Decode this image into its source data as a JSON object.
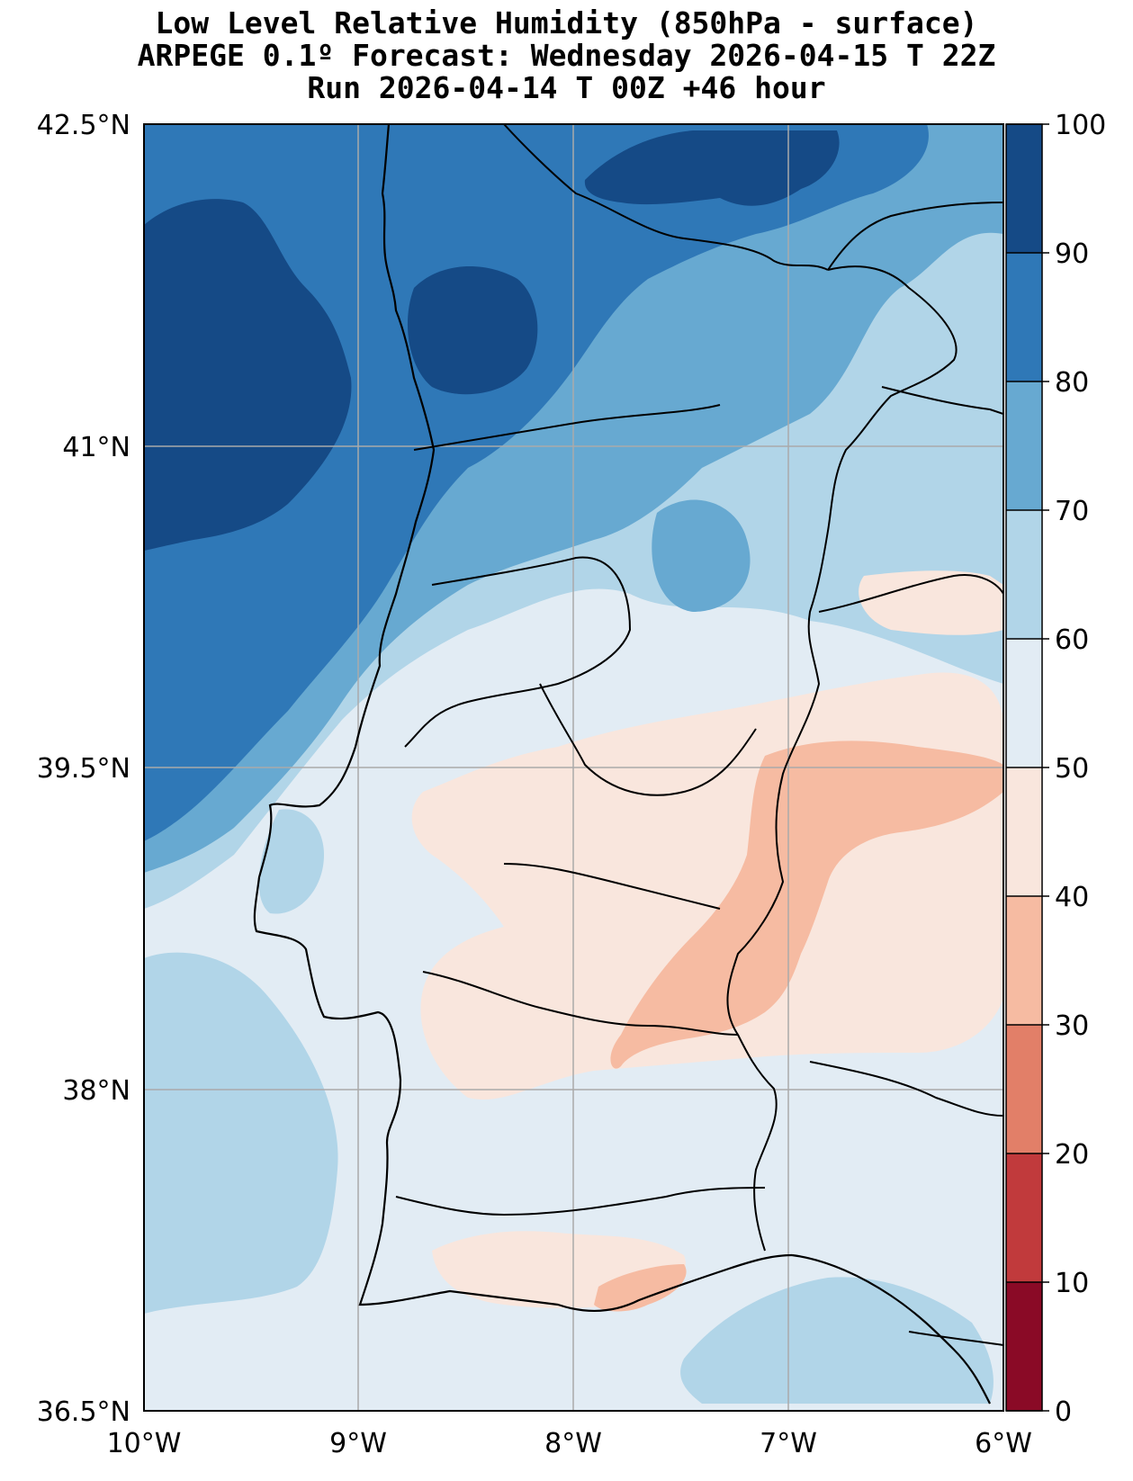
{
  "title": {
    "line1": "Low Level Relative Humidity (850hPa - surface)",
    "line2": "ARPEGE 0.1º Forecast: Wednesday 2026-04-15 T 22Z",
    "line3": "Run 2026-04-14 T 00Z +46 hour"
  },
  "map": {
    "lat_labels": [
      "42.5°N",
      "41°N",
      "39.5°N",
      "38°N",
      "36.5°N"
    ],
    "lon_labels": [
      "10°W",
      "9°W",
      "8°W",
      "7°W",
      "6°W"
    ],
    "lat_range": [
      36.5,
      42.5
    ],
    "lon_range": [
      -10,
      -6
    ],
    "gridlines": true
  },
  "colorbar": {
    "labels": [
      "100",
      "90",
      "80",
      "70",
      "60",
      "50",
      "40",
      "30",
      "20",
      "10",
      "0"
    ],
    "bands": [
      {
        "range": "90-100",
        "color": "#154a86"
      },
      {
        "range": "80-90",
        "color": "#2f78b7"
      },
      {
        "range": "70-80",
        "color": "#67a9d1"
      },
      {
        "range": "60-70",
        "color": "#b1d5e8"
      },
      {
        "range": "50-60",
        "color": "#e2ecf4"
      },
      {
        "range": "40-50",
        "color": "#f9e6dd"
      },
      {
        "range": "30-40",
        "color": "#f6bba2"
      },
      {
        "range": "20-30",
        "color": "#e27f68"
      },
      {
        "range": "10-20",
        "color": "#c13a3c"
      },
      {
        "range": "0-10",
        "color": "#8a0a26"
      }
    ]
  },
  "colors": {
    "rh_90_100": "#154a86",
    "rh_80_90": "#2f78b7",
    "rh_70_80": "#67a9d1",
    "rh_60_70": "#b1d5e8",
    "rh_50_60": "#e2ecf4",
    "rh_40_50": "#f9e6dd",
    "rh_30_40": "#f6bba2"
  }
}
